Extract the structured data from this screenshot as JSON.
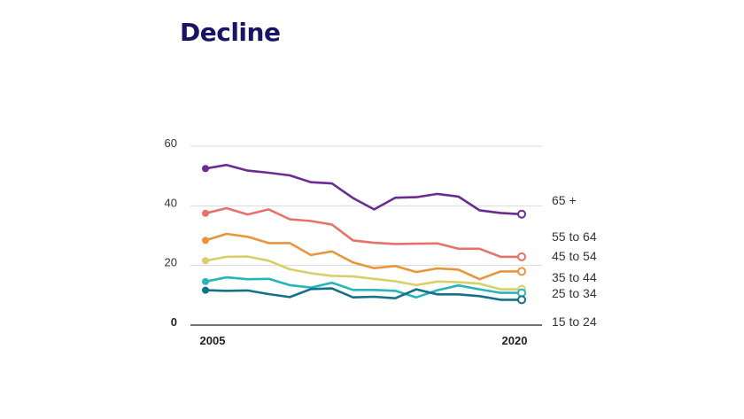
{
  "title": "Decline",
  "chart_data": {
    "type": "line",
    "title": "Decline",
    "xlabel": "",
    "ylabel": "",
    "x": [
      2005,
      2006,
      2007,
      2008,
      2009,
      2010,
      2011,
      2012,
      2013,
      2014,
      2015,
      2016,
      2017,
      2018,
      2019,
      2020
    ],
    "x_tick_labels": [
      "2005",
      "2020"
    ],
    "y_ticks": [
      0,
      20,
      40,
      60
    ],
    "ylim": [
      0,
      60
    ],
    "grid": true,
    "legend": "labels at right end of lines",
    "series": [
      {
        "name": "65 +",
        "color": "#6a2c91",
        "values": [
          52.5,
          53.7,
          51.8,
          51.1,
          50.2,
          47.9,
          47.5,
          42.6,
          38.8,
          42.7,
          42.9,
          44.0,
          43.1,
          38.5,
          37.6,
          37.2
        ]
      },
      {
        "name": "55 to 64",
        "color": "#e5736a",
        "values": [
          37.5,
          39.2,
          37.1,
          38.8,
          35.5,
          34.9,
          33.7,
          28.4,
          27.6,
          27.2,
          27.3,
          27.4,
          25.6,
          25.6,
          22.9,
          22.9
        ]
      },
      {
        "name": "45 to 54",
        "color": "#e8963c",
        "values": [
          28.4,
          30.6,
          29.6,
          27.5,
          27.5,
          23.5,
          24.7,
          21.0,
          19.1,
          19.8,
          17.8,
          19.0,
          18.6,
          15.4,
          18.0,
          18.0
        ]
      },
      {
        "name": "35 to 44",
        "color": "#d9cf6a",
        "values": [
          21.6,
          22.9,
          23.0,
          21.6,
          18.7,
          17.4,
          16.5,
          16.3,
          15.5,
          14.7,
          13.4,
          14.6,
          14.4,
          13.9,
          12.0,
          12.0
        ]
      },
      {
        "name": "25 to 34",
        "color": "#26b5b8",
        "values": [
          14.6,
          16.0,
          15.4,
          15.5,
          13.4,
          12.6,
          14.2,
          11.8,
          11.8,
          11.5,
          9.3,
          11.7,
          13.3,
          12.0,
          10.8,
          10.8
        ]
      },
      {
        "name": "15 to 24",
        "color": "#15708a",
        "values": [
          11.7,
          11.5,
          11.6,
          10.4,
          9.4,
          12.1,
          12.3,
          9.3,
          9.5,
          9.0,
          12.0,
          10.3,
          10.3,
          9.7,
          8.5,
          8.5
        ]
      }
    ]
  }
}
